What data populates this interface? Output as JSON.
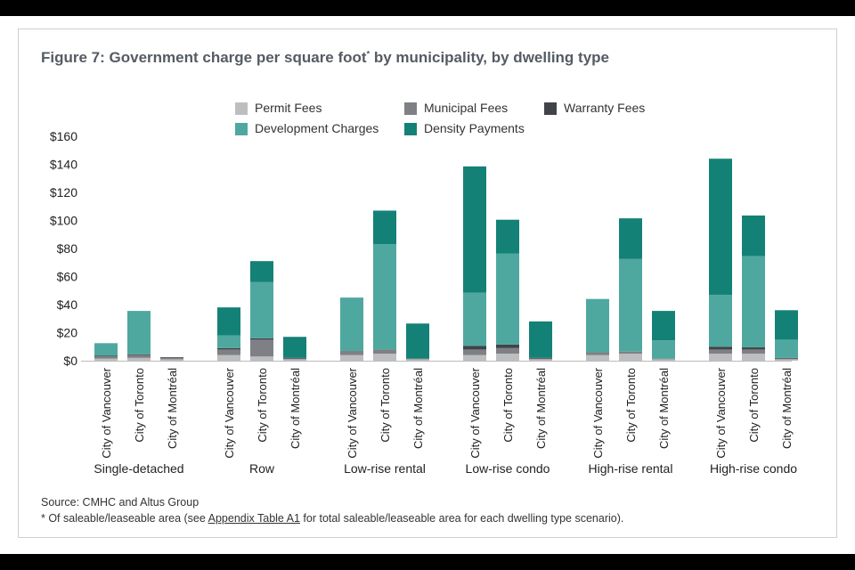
{
  "title": "Figure 7: Government charge per square foot",
  "title_marker": "*",
  "title_suffix": " by municipality, by dwelling type",
  "source": "Source: CMHC and Altus Group",
  "footnote": {
    "prefix": "* Of saleable/leaseable area (see ",
    "link": "Appendix Table A1",
    "suffix": " for total saleable/leaseable area for each dwelling type scenario)."
  },
  "chart_data": {
    "type": "bar",
    "stacked": true,
    "title": "Figure 7: Government charge per square foot* by municipality, by dwelling type",
    "y_axis": {
      "min": 0,
      "max": 160,
      "ticks": [
        0,
        20,
        40,
        60,
        80,
        100,
        120,
        140,
        160
      ],
      "tick_labels": [
        "$0",
        "$20",
        "$40",
        "$60",
        "$80",
        "$100",
        "$120",
        "$140",
        "$160"
      ]
    },
    "groups": [
      "Single-detached",
      "Row",
      "Low-rise rental",
      "Low-rise condo",
      "High-rise rental",
      "High-rise condo"
    ],
    "cities": [
      "City of Vancouver",
      "City of Toronto",
      "City of Montréal"
    ],
    "legend_position": "top-center",
    "series": [
      {
        "name": "Permit Fees",
        "color": "#bdbec0",
        "values": [
          [
            1.5,
            2,
            1
          ],
          [
            4,
            3,
            1
          ],
          [
            4,
            5,
            1
          ],
          [
            4,
            5,
            1
          ],
          [
            4,
            5,
            1
          ],
          [
            5,
            5,
            1
          ]
        ]
      },
      {
        "name": "Municipal Fees",
        "color": "#7e8085",
        "values": [
          [
            1.5,
            2,
            1
          ],
          [
            4,
            12,
            0.5
          ],
          [
            3,
            3,
            0.5
          ],
          [
            4,
            4,
            0.5
          ],
          [
            2,
            1.5,
            0.5
          ],
          [
            3,
            3,
            0.5
          ]
        ]
      },
      {
        "name": "Warranty Fees",
        "color": "#404348",
        "values": [
          [
            0.5,
            0.5,
            0.5
          ],
          [
            1,
            1,
            0.5
          ],
          [
            0,
            0,
            0
          ],
          [
            2.5,
            2.5,
            0.5
          ],
          [
            0,
            0,
            0
          ],
          [
            2,
            1.5,
            0.5
          ]
        ]
      },
      {
        "name": "Development Charges",
        "color": "#4fa89f",
        "values": [
          [
            9,
            31,
            0
          ],
          [
            9,
            40,
            0
          ],
          [
            38,
            75,
            0
          ],
          [
            38,
            65,
            0
          ],
          [
            38,
            66,
            13
          ],
          [
            37,
            65,
            13
          ]
        ]
      },
      {
        "name": "Density Payments",
        "color": "#148177",
        "values": [
          [
            0,
            0,
            0
          ],
          [
            20,
            15,
            15
          ],
          [
            0,
            24,
            25
          ],
          [
            90,
            24,
            26
          ],
          [
            0,
            29,
            21
          ],
          [
            97,
            29,
            21
          ]
        ]
      }
    ]
  }
}
